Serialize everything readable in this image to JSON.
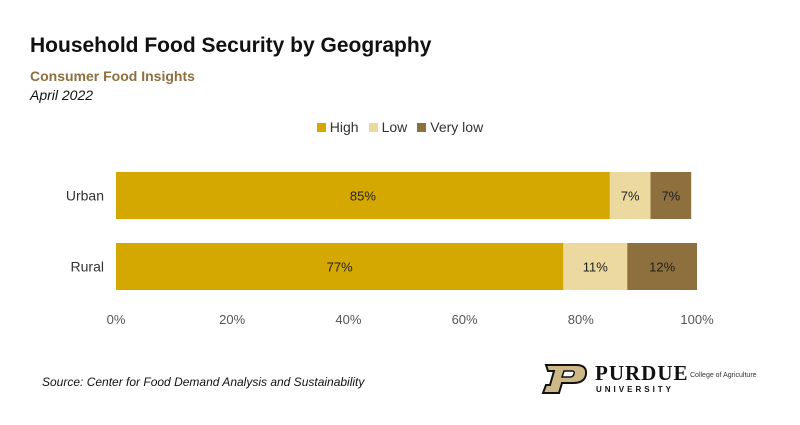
{
  "header": {
    "title": "Household Food Security by Geography",
    "subtitle": "Consumer Food Insights",
    "date": "April 2022"
  },
  "legend": [
    {
      "label": "High",
      "color": "#D4A800"
    },
    {
      "label": "Low",
      "color": "#EBD99F"
    },
    {
      "label": "Very low",
      "color": "#8E6F3E"
    }
  ],
  "chart_data": {
    "type": "bar",
    "orientation": "horizontal",
    "stacked": true,
    "title": "Household Food Security by Geography",
    "subtitle": "Consumer Food Insights",
    "categories": [
      "Urban",
      "Rural"
    ],
    "series": [
      {
        "name": "High",
        "values": [
          85,
          77
        ],
        "labels": [
          "85%",
          "77%"
        ],
        "color": "#D4A800"
      },
      {
        "name": "Low",
        "values": [
          7,
          11
        ],
        "labels": [
          "7%",
          "11%"
        ],
        "color": "#EBD99F"
      },
      {
        "name": "Very low",
        "values": [
          7,
          12
        ],
        "labels": [
          "7%",
          "12%"
        ],
        "color": "#8E6F3E"
      }
    ],
    "xlim": [
      0,
      100
    ],
    "xticks": [
      "0%",
      "20%",
      "40%",
      "60%",
      "80%",
      "100%"
    ],
    "grid": false,
    "legend_position": "top"
  },
  "footer": {
    "source": "Source:  Center for Food Demand Analysis and Sustainability",
    "logo_wordmark": "PURDUE",
    "logo_university": "UNIVERSITY",
    "logo_college": "College of Agriculture"
  }
}
